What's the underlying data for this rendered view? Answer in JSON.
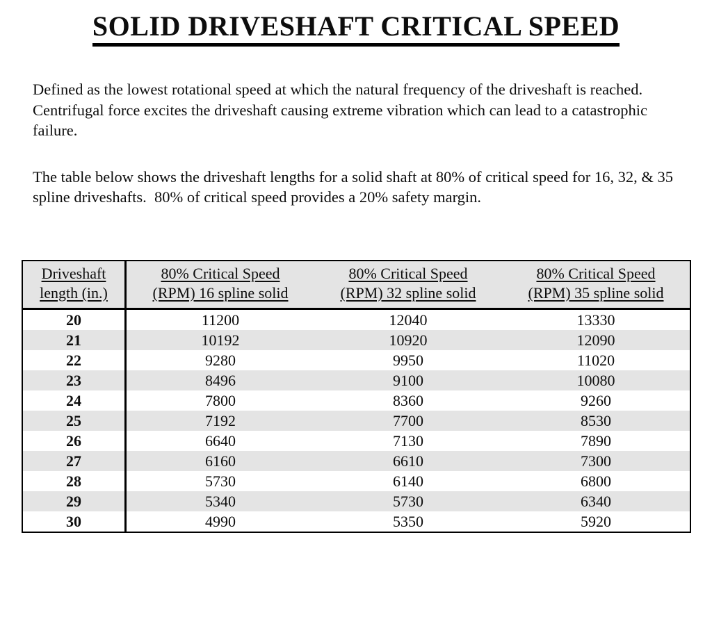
{
  "title": "SOLID DRIVESHAFT CRITICAL SPEED",
  "paragraphs": [
    "Defined as the lowest rotational speed at which the natural frequency of the driveshaft is reached.  Centrifugal force excites the driveshaft causing extreme vibration which can lead to a catastrophic failure.",
    "The table below shows the driveshaft lengths for a solid shaft at 80% of critical speed for 16, 32, & 35 spline driveshafts.  80% of critical speed provides a 20% safety margin."
  ],
  "table": {
    "headers": [
      {
        "key": "driveshaft-length",
        "line1": "Driveshaft",
        "line2": "length (in.)"
      },
      {
        "key": "16-spline",
        "line1": "80% Critical Speed",
        "line2": "(RPM) 16 spline solid"
      },
      {
        "key": "32-spline",
        "line1": "80% Critical Speed",
        "line2": "(RPM) 32 spline solid"
      },
      {
        "key": "35-spline",
        "line1": "80% Critical Speed",
        "line2": "(RPM) 35 spline solid"
      }
    ],
    "rows": [
      [
        "20",
        "11200",
        "12040",
        "13330"
      ],
      [
        "21",
        "10192",
        "10920",
        "12090"
      ],
      [
        "22",
        "9280",
        "9950",
        "11020"
      ],
      [
        "23",
        "8496",
        "9100",
        "10080"
      ],
      [
        "24",
        "7800",
        "8360",
        "9260"
      ],
      [
        "25",
        "7192",
        "7700",
        "8530"
      ],
      [
        "26",
        "6640",
        "7130",
        "7890"
      ],
      [
        "27",
        "6160",
        "6610",
        "7300"
      ],
      [
        "28",
        "5730",
        "6140",
        "6800"
      ],
      [
        "29",
        "5340",
        "5730",
        "6340"
      ],
      [
        "30",
        "4990",
        "5350",
        "5920"
      ]
    ]
  },
  "colors": {
    "row_stripe": "#e4e4e4",
    "header_bg": "#e4e4e4",
    "border": "#000000",
    "text": "#0d0d0d",
    "page_bg": "#ffffff"
  }
}
